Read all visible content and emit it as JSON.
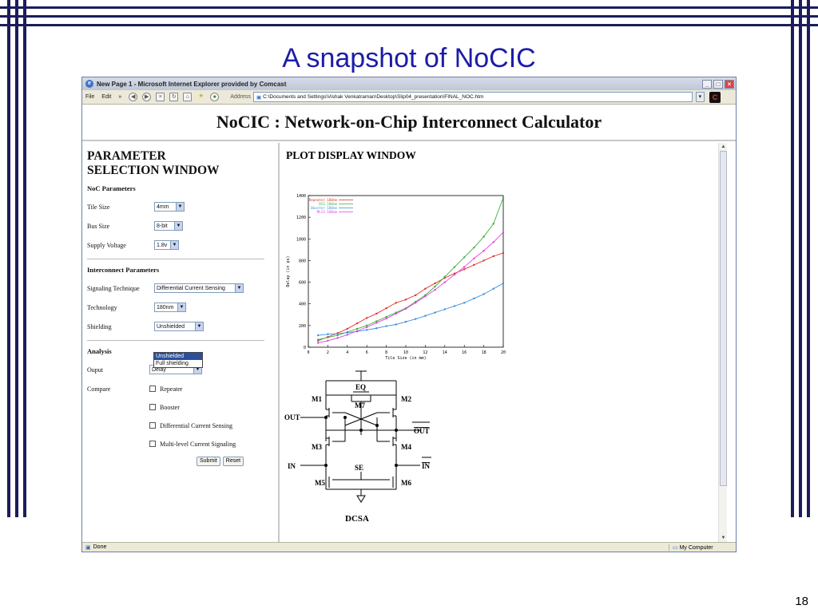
{
  "slide": {
    "title": "A snapshot of NoCIC",
    "number": "18"
  },
  "browser": {
    "window_title": "New Page 1 - Microsoft Internet Explorer provided by Comcast",
    "menus": [
      "File",
      "Edit"
    ],
    "address_label": "Address",
    "address": "C:\\Documents and Settings\\Vishak Venkatraman\\Desktop\\Slip04_presentation\\FINAL_NOC.htm",
    "status_left": "Done",
    "status_right": "My Computer"
  },
  "page": {
    "header": "NoCIC : Network-on-Chip Interconnect Calculator",
    "left": {
      "title_line1": "PARAMETER",
      "title_line2": "SELECTION WINDOW",
      "noc_heading": "NoC Parameters",
      "tile_size": {
        "label": "Tile Size",
        "value": "4mm"
      },
      "bus_size": {
        "label": "Bus Size",
        "value": "8-bit"
      },
      "supply_voltage": {
        "label": "Supply Voltage",
        "value": "1.8v"
      },
      "interconnect_heading": "Interconnect Parameters",
      "signaling": {
        "label": "Signaling Technique",
        "value": "Differential Current Sensing"
      },
      "technology": {
        "label": "Technology",
        "value": "180nm"
      },
      "shielding": {
        "label": "Shielding",
        "value": "Unshielded",
        "options": [
          "Unshielded",
          "Full shielding"
        ]
      },
      "analysis_heading": "Analysis",
      "output": {
        "label": "Ouput",
        "value": "Delay"
      },
      "compare_label": "Compare",
      "compare_options": [
        "Repeater",
        "Booster",
        "Differential Current Sensing",
        "Multi-level Current Signaling"
      ],
      "submit": "Submit",
      "reset": "Reset"
    },
    "right": {
      "title": "PLOT DISPLAY WINDOW",
      "circuit": {
        "labels": {
          "eq": "EQ",
          "m1": "M1",
          "m2": "M2",
          "m3": "M3",
          "m4": "M4",
          "m5": "M5",
          "m6": "M6",
          "m7": "M7",
          "out": "OUT",
          "out_bar": "OUT",
          "in": "IN",
          "in_bar": "IN",
          "se": "SE",
          "caption": "DCSA"
        }
      }
    }
  },
  "colors": {
    "repeater": "#e03030",
    "dcs": "#40b040",
    "booster": "#3a8fe0",
    "mlcs": "#e040e0"
  },
  "chart_data": {
    "type": "line",
    "xlabel": "Tile Size (in mm)",
    "ylabel": "Delay (in ps)",
    "xlim": [
      0,
      20
    ],
    "ylim": [
      0,
      1400
    ],
    "x_ticks": [
      0,
      2,
      4,
      6,
      8,
      10,
      12,
      14,
      16,
      18,
      20
    ],
    "y_ticks": [
      0,
      200,
      400,
      600,
      800,
      1000,
      1200,
      1400
    ],
    "x": [
      1,
      2,
      3,
      4,
      5,
      6,
      7,
      8,
      9,
      10,
      11,
      12,
      13,
      14,
      15,
      16,
      17,
      18,
      19,
      20
    ],
    "legend_position": "top-left",
    "series": [
      {
        "name": "Repeater 180nm",
        "color": "#e03030",
        "values": [
          60,
          95,
          130,
          170,
          220,
          270,
          310,
          360,
          410,
          440,
          480,
          540,
          590,
          640,
          680,
          720,
          760,
          800,
          840,
          870
        ]
      },
      {
        "name": "DCS 180nm",
        "color": "#40b040",
        "values": [
          70,
          90,
          110,
          140,
          170,
          200,
          240,
          280,
          320,
          360,
          420,
          480,
          560,
          650,
          740,
          830,
          920,
          1020,
          1140,
          1380
        ]
      },
      {
        "name": "Booster 180nm",
        "color": "#3a8fe0",
        "values": [
          110,
          120,
          125,
          135,
          145,
          160,
          175,
          195,
          210,
          235,
          260,
          290,
          320,
          350,
          380,
          410,
          450,
          490,
          540,
          590
        ]
      },
      {
        "name": "MLCS 180nm",
        "color": "#e040e0",
        "values": [
          40,
          60,
          85,
          115,
          150,
          185,
          225,
          265,
          310,
          355,
          410,
          470,
          530,
          600,
          670,
          740,
          820,
          890,
          970,
          1060
        ]
      }
    ]
  }
}
